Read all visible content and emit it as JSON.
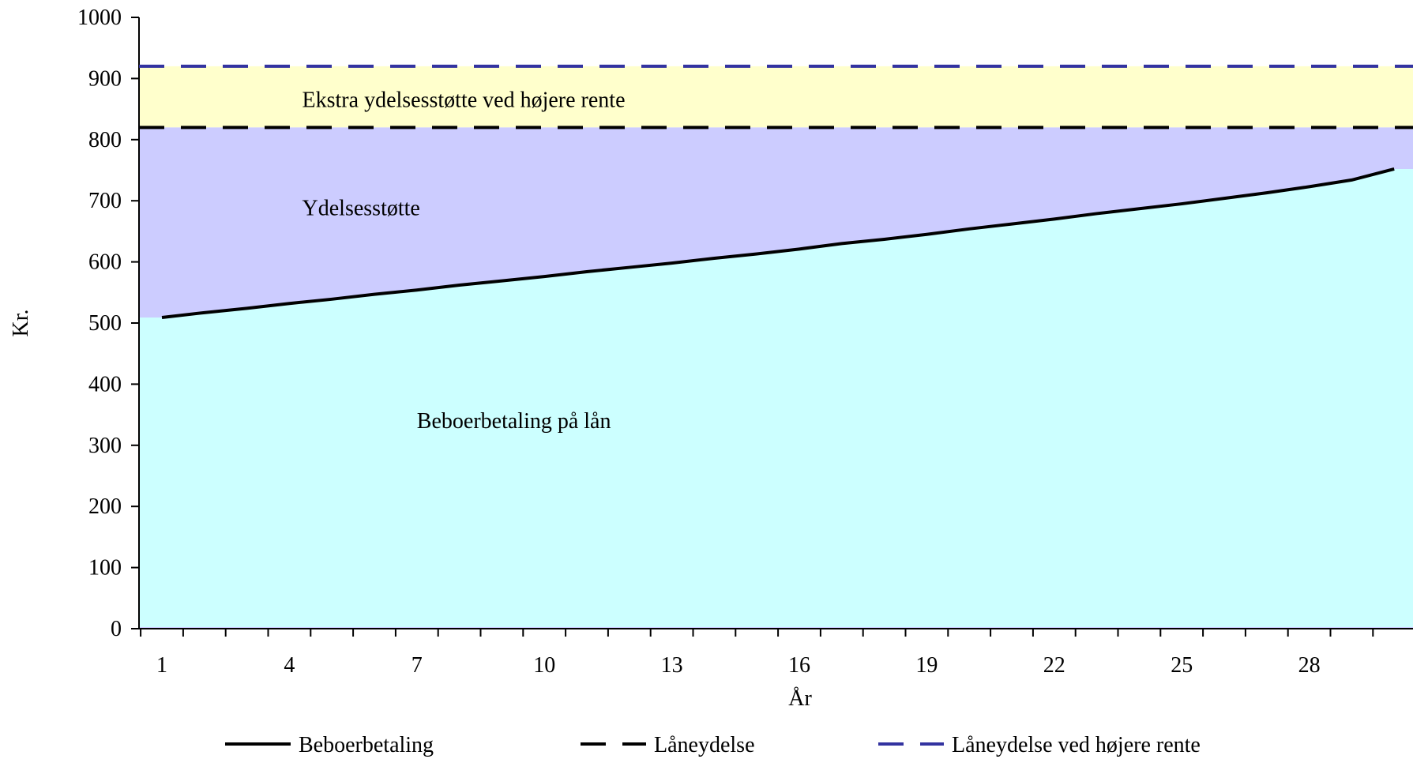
{
  "chart_data": {
    "type": "area",
    "xlabel": "År",
    "ylabel": "Kr.",
    "ylim": [
      0,
      1000
    ],
    "xlim": [
      1,
      30
    ],
    "y_ticks": [
      0,
      100,
      200,
      300,
      400,
      500,
      600,
      700,
      800,
      900,
      1000
    ],
    "x_tick_labels": [
      1,
      4,
      7,
      10,
      13,
      16,
      19,
      22,
      25,
      28
    ],
    "x": [
      1,
      2,
      3,
      4,
      5,
      6,
      7,
      8,
      9,
      10,
      11,
      12,
      13,
      14,
      15,
      16,
      17,
      18,
      19,
      20,
      21,
      22,
      23,
      24,
      25,
      26,
      27,
      28,
      29,
      30
    ],
    "series": [
      {
        "name": "Beboerbetaling",
        "style": "solid",
        "color": "#000000",
        "values": [
          509,
          517,
          524,
          532,
          539,
          547,
          554,
          562,
          569,
          576,
          584,
          591,
          598,
          606,
          613,
          621,
          630,
          637,
          645,
          654,
          662,
          670,
          679,
          687,
          695,
          704,
          713,
          723,
          734,
          752
        ]
      },
      {
        "name": "Låneydelse",
        "style": "dashed",
        "color": "#000000",
        "value": 820
      },
      {
        "name": "Låneydelse ved højere rente",
        "style": "dashed",
        "color": "#3333a0",
        "value": 920
      }
    ],
    "areas": {
      "beboer_color": "#ccffff",
      "ydelse_color": "#ccccff",
      "ekstra_color": "#ffffcc"
    },
    "annotations": [
      {
        "key": "ekstra",
        "text": "Ekstra ydelsesstøtte ved højere rente",
        "x": 4.3,
        "y": 865
      },
      {
        "key": "ydelse",
        "text": "Ydelsesstøtte",
        "x": 4.3,
        "y": 688
      },
      {
        "key": "beboer",
        "text": "Beboerbetaling på lån",
        "x": 7.0,
        "y": 340
      }
    ],
    "legend_position": "bottom"
  }
}
